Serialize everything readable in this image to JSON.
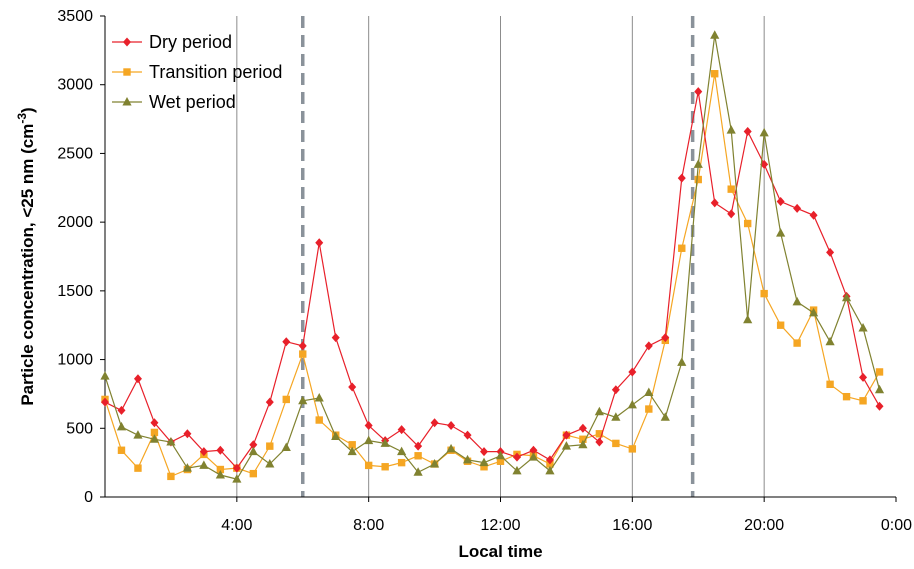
{
  "chart_data": {
    "type": "line",
    "title": "",
    "xlabel": "Local time",
    "ylabel": "Particle concentration, <25 nm (cm",
    "ylabel_sup": "-3",
    "ylabel_close": ")",
    "xlim": [
      0,
      24
    ],
    "ylim": [
      0,
      3500
    ],
    "x_ticks": [
      {
        "value": 4,
        "label": "4:00"
      },
      {
        "value": 8,
        "label": "8:00"
      },
      {
        "value": 12,
        "label": "12:00"
      },
      {
        "value": 16,
        "label": "16:00"
      },
      {
        "value": 20,
        "label": "20:00"
      },
      {
        "value": 24,
        "label": "0:00"
      }
    ],
    "y_ticks": [
      0,
      500,
      1000,
      1500,
      2000,
      2500,
      3000,
      3500
    ],
    "vertical_gridlines": [
      4,
      8,
      12,
      16,
      20
    ],
    "dashed_markers": [
      6,
      17.83
    ],
    "grid": "vertical",
    "legend_position": "top-left",
    "x": [
      0,
      0.5,
      1,
      1.5,
      2,
      2.5,
      3,
      3.5,
      4,
      4.5,
      5,
      5.5,
      6,
      6.5,
      7,
      7.5,
      8,
      8.5,
      9,
      9.5,
      10,
      10.5,
      11,
      11.5,
      12,
      12.5,
      13,
      13.5,
      14,
      14.5,
      15,
      15.5,
      16,
      16.5,
      17,
      17.5,
      18,
      18.5,
      19,
      19.5,
      20,
      20.5,
      21,
      21.5,
      22,
      22.5,
      23,
      23.5
    ],
    "series": [
      {
        "name": "Dry period",
        "color": "#e8202a",
        "marker": "diamond",
        "values": [
          690,
          630,
          860,
          540,
          400,
          460,
          330,
          340,
          210,
          380,
          690,
          1130,
          1100,
          1850,
          1160,
          800,
          520,
          410,
          490,
          370,
          540,
          520,
          450,
          330,
          330,
          290,
          340,
          270,
          450,
          500,
          400,
          780,
          910,
          1100,
          1160,
          2320,
          2950,
          2140,
          2060,
          2660,
          2420,
          2150,
          2100,
          2050,
          1780,
          1460,
          870,
          660
        ]
      },
      {
        "name": "Transition period",
        "color": "#f5a623",
        "marker": "square",
        "values": [
          710,
          340,
          210,
          470,
          150,
          200,
          310,
          200,
          210,
          170,
          370,
          710,
          1040,
          560,
          450,
          380,
          230,
          220,
          250,
          300,
          240,
          340,
          260,
          220,
          260,
          310,
          300,
          240,
          450,
          420,
          460,
          390,
          350,
          640,
          1140,
          1810,
          2310,
          3080,
          2240,
          1990,
          1480,
          1250,
          1120,
          1360,
          820,
          730,
          700,
          910
        ]
      },
      {
        "name": "Wet period",
        "color": "#808230",
        "marker": "triangle",
        "values": [
          880,
          510,
          450,
          420,
          400,
          210,
          230,
          160,
          130,
          330,
          240,
          360,
          700,
          720,
          440,
          330,
          410,
          390,
          330,
          180,
          240,
          350,
          270,
          250,
          300,
          190,
          290,
          190,
          370,
          380,
          620,
          580,
          670,
          760,
          580,
          980,
          2420,
          3360,
          2670,
          1290,
          2650,
          1920,
          1420,
          1340,
          1130,
          1450,
          1230,
          780
        ]
      }
    ]
  }
}
